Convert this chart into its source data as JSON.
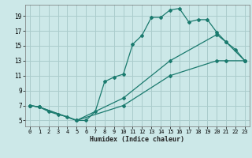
{
  "title": "",
  "xlabel": "Humidex (Indice chaleur)",
  "background_color": "#cce8e8",
  "grid_color": "#aacccc",
  "line_color": "#1a7a6e",
  "xlim": [
    -0.5,
    23.5
  ],
  "ylim": [
    4.2,
    20.5
  ],
  "xticks": [
    0,
    1,
    2,
    3,
    4,
    5,
    6,
    7,
    8,
    9,
    10,
    11,
    12,
    13,
    14,
    15,
    16,
    17,
    18,
    19,
    20,
    21,
    22,
    23
  ],
  "yticks": [
    5,
    7,
    9,
    11,
    13,
    15,
    17,
    19
  ],
  "line1_x": [
    0,
    1,
    2,
    3,
    4,
    5,
    6,
    7,
    8,
    9,
    10,
    11,
    12,
    13,
    14,
    15,
    16,
    17,
    18,
    19,
    20,
    21,
    22,
    23
  ],
  "line1_y": [
    7,
    6.8,
    6.2,
    5.8,
    5.5,
    5.0,
    5.0,
    6.2,
    10.2,
    10.8,
    11.2,
    15.2,
    16.4,
    18.8,
    18.8,
    19.8,
    20.0,
    18.2,
    18.5,
    18.5,
    16.8,
    15.5,
    14.5,
    13.0
  ],
  "line2_x": [
    0,
    1,
    5,
    10,
    15,
    20,
    21,
    23
  ],
  "line2_y": [
    7,
    6.8,
    5.0,
    8.0,
    13.0,
    16.5,
    15.5,
    13.0
  ],
  "line3_x": [
    0,
    1,
    5,
    10,
    15,
    20,
    21,
    23
  ],
  "line3_y": [
    7,
    6.8,
    5.0,
    7.0,
    11.0,
    13.0,
    13.0,
    13.0
  ]
}
